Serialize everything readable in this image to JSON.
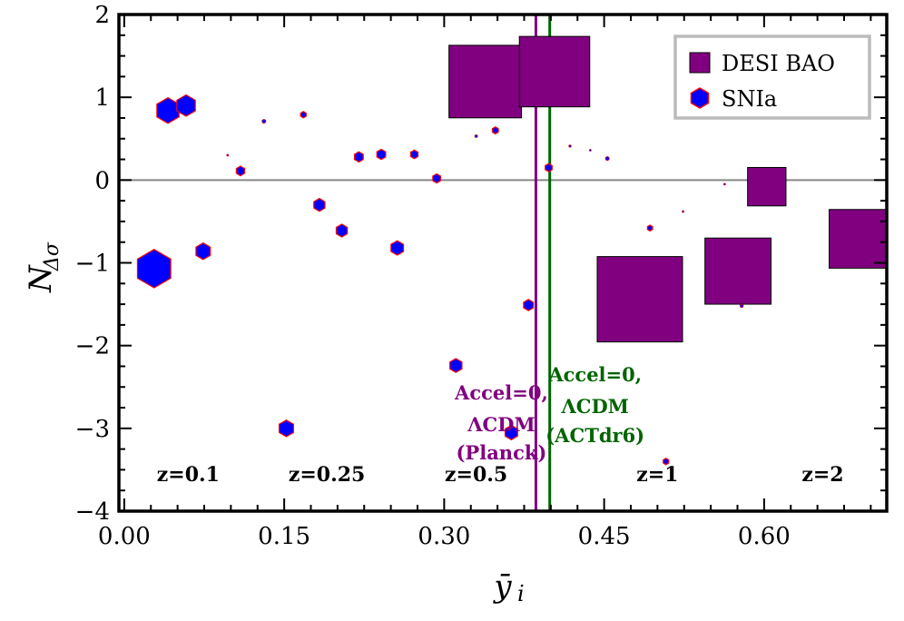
{
  "chart_data": {
    "type": "scatter",
    "xlabel": "ȳ",
    "xlabel_sub": "i",
    "ylabel": "N",
    "ylabel_sub": "Δσ",
    "xlim": [
      -0.005,
      0.715
    ],
    "ylim": [
      -4,
      2
    ],
    "xticks": [
      0.0,
      0.15,
      0.3,
      0.45,
      0.6
    ],
    "xtick_labels": [
      "0.00",
      "0.15",
      "0.30",
      "0.45",
      "0.60"
    ],
    "yticks": [
      2,
      1,
      0,
      -1,
      -2,
      -3,
      -4
    ],
    "ytick_labels": [
      "2",
      "1",
      "0",
      "−1",
      "−2",
      "−3",
      "−4"
    ],
    "x_minor_step": 0.025,
    "y_minor_step": 0.25,
    "hline": {
      "y": 0,
      "color": "#888888"
    },
    "colors": {
      "desi": "#800080",
      "sni": "#0000ff",
      "sni_edge": "#ff0000",
      "planck": "#800080",
      "act": "#006400",
      "desi_edge": "#000000"
    },
    "vlines": [
      {
        "name": "planck",
        "x": 0.386,
        "color": "#800080",
        "label_lines": [
          "Accel=0,",
          "ΛCDM",
          "(Planck)"
        ]
      },
      {
        "name": "act",
        "x": 0.399,
        "color": "#006400",
        "label_lines": [
          "Accel=0,",
          "ΛCDM",
          "(ACTdr6)"
        ]
      }
    ],
    "legend": {
      "position": "upper right",
      "entries": [
        "DESI BAO",
        "SNIa"
      ]
    },
    "series": [
      {
        "name": "DESI BAO",
        "marker": "square",
        "points": [
          {
            "x": 0.3385,
            "y": 1.19,
            "size": 0.068
          },
          {
            "x": 0.4035,
            "y": 1.31,
            "size": 0.066
          },
          {
            "x": 0.4835,
            "y": -1.44,
            "size": 0.08
          },
          {
            "x": 0.5755,
            "y": -1.1,
            "size": 0.062
          },
          {
            "x": 0.6025,
            "y": -0.08,
            "size": 0.036
          },
          {
            "x": 0.6885,
            "y": -0.71,
            "size": 0.055
          }
        ]
      },
      {
        "name": "SNIa",
        "marker": "hexagon",
        "points": [
          {
            "x": 0.028,
            "y": -1.07,
            "size": 0.036
          },
          {
            "x": 0.041,
            "y": 0.84,
            "size": 0.024
          },
          {
            "x": 0.058,
            "y": 0.9,
            "size": 0.02
          },
          {
            "x": 0.074,
            "y": -0.86,
            "size": 0.0155
          },
          {
            "x": 0.097,
            "y": 0.3,
            "size": 0.002
          },
          {
            "x": 0.109,
            "y": 0.11,
            "size": 0.009
          },
          {
            "x": 0.131,
            "y": 0.71,
            "size": 0.004
          },
          {
            "x": 0.152,
            "y": -3.0,
            "size": 0.0155
          },
          {
            "x": 0.168,
            "y": 0.79,
            "size": 0.006
          },
          {
            "x": 0.183,
            "y": -0.3,
            "size": 0.012
          },
          {
            "x": 0.204,
            "y": -0.61,
            "size": 0.012
          },
          {
            "x": 0.22,
            "y": 0.28,
            "size": 0.0095
          },
          {
            "x": 0.241,
            "y": 0.31,
            "size": 0.0095
          },
          {
            "x": 0.256,
            "y": -0.82,
            "size": 0.0135
          },
          {
            "x": 0.272,
            "y": 0.31,
            "size": 0.008
          },
          {
            "x": 0.293,
            "y": 0.02,
            "size": 0.0085
          },
          {
            "x": 0.311,
            "y": -2.24,
            "size": 0.013
          },
          {
            "x": 0.33,
            "y": 0.53,
            "size": 0.003
          },
          {
            "x": 0.348,
            "y": 0.6,
            "size": 0.0065
          },
          {
            "x": 0.363,
            "y": -3.05,
            "size": 0.0135
          },
          {
            "x": 0.379,
            "y": -1.51,
            "size": 0.0105
          },
          {
            "x": 0.398,
            "y": 0.15,
            "size": 0.0075
          },
          {
            "x": 0.418,
            "y": 0.41,
            "size": 0.0025
          },
          {
            "x": 0.437,
            "y": 0.36,
            "size": 0.0017
          },
          {
            "x": 0.453,
            "y": 0.26,
            "size": 0.004
          },
          {
            "x": 0.493,
            "y": -0.58,
            "size": 0.0055
          },
          {
            "x": 0.508,
            "y": -3.4,
            "size": 0.006
          },
          {
            "x": 0.524,
            "y": -0.38,
            "size": 0.0017
          },
          {
            "x": 0.563,
            "y": -0.05,
            "size": 0.0006
          },
          {
            "x": 0.579,
            "y": -1.52,
            "size": 0.0035
          }
        ]
      }
    ],
    "z_labels": [
      {
        "text": "z=0.1",
        "x": 0.06
      },
      {
        "text": "z=0.25",
        "x": 0.19
      },
      {
        "text": "z=0.5",
        "x": 0.33
      },
      {
        "text": "z=1",
        "x": 0.5
      },
      {
        "text": "z=2",
        "x": 0.655
      }
    ]
  }
}
